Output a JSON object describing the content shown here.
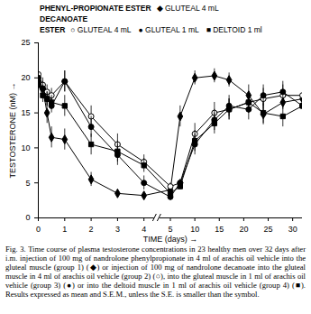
{
  "chart_data": {
    "type": "line",
    "xlabel": "TIME (days)",
    "ylabel": "TESTOSTERONE (nM)",
    "caption": "Fig. 3. Time course of plasma testosterone concentrations in 23 healthy men over 32 days after i.m. injection of 100 mg of nandrolone phenylpropionate in 4 ml of arachis oil vehicle into the gluteal muscle (group 1) (◆) or injection of 100 mg of nandrolone decanoate into the gluteal muscle in 4 ml of arachis oil vehicle (group 2) (○), into the gluteal muscle in 1 ml of arachis oil vehicle (group 3) (●) or into the deltoid muscle in 1 ml of arachis oil vehicle (group 4) (■). Results expressed as mean and S.E.M., unless the S.E. is smaller than the symbol.",
    "x": [
      0,
      0.17,
      0.33,
      0.5,
      1,
      2,
      3,
      4,
      5,
      7,
      10,
      14,
      17,
      21,
      24,
      28,
      32
    ],
    "xlim": [
      0,
      32
    ],
    "xticks": [
      0,
      1,
      2,
      3,
      4,
      5,
      10,
      15,
      20,
      25,
      30
    ],
    "ylim": [
      0,
      25
    ],
    "yticks": [
      0,
      5,
      10,
      15,
      20,
      25
    ],
    "grid": false,
    "series": [
      {
        "name": "GLUTEAL 4 mL",
        "group": "PHENYL-PROPIONATE ESTER",
        "color": "#000000",
        "marker": "diamond",
        "line_style": "solid",
        "values": [
          19.5,
          18.5,
          15,
          11.5,
          11.2,
          5.5,
          3.5,
          3.2,
          4,
          14.5,
          20,
          20.3,
          19.7,
          17.5,
          14.8,
          16.5,
          17
        ],
        "errors": [
          1,
          1,
          1.5,
          1.5,
          1.5,
          1,
          0.5,
          0.5,
          0.5,
          1.5,
          1,
          1,
          1,
          1.5,
          1.5,
          1,
          1
        ]
      },
      {
        "name": "GLUTEAL 4 mL",
        "group": "DECANOATE ESTER",
        "color": "#000000",
        "marker": "circle-open",
        "line_style": "solid",
        "values": [
          20.5,
          19,
          18,
          17.5,
          19.5,
          14.5,
          10.5,
          8,
          4.5,
          5,
          12,
          15,
          15.5,
          16.5,
          17,
          17.5,
          17.5
        ],
        "errors": [
          1,
          1,
          1,
          1,
          1.5,
          1.5,
          1.5,
          1,
          0.5,
          0.5,
          1.5,
          1.5,
          1.5,
          1.5,
          1.5,
          1.5,
          1.5
        ]
      },
      {
        "name": "GLUTEAL 1 mL",
        "group": "DECANOATE ESTER",
        "color": "#000000",
        "marker": "circle",
        "line_style": "solid",
        "values": [
          20,
          18.5,
          17,
          16,
          19.5,
          13,
          9,
          5,
          3,
          5,
          10.5,
          14,
          16,
          15.5,
          17.5,
          18,
          16
        ],
        "errors": [
          1,
          1,
          1,
          1,
          1.5,
          1.5,
          1.5,
          1,
          0.5,
          0.5,
          1.5,
          1.5,
          1.5,
          1.5,
          1.5,
          1.5,
          1.5
        ]
      },
      {
        "name": "DELTOID 1 ml",
        "group": "DECANOATE ESTER",
        "color": "#000000",
        "marker": "square",
        "line_style": "solid",
        "values": [
          19,
          17.5,
          17,
          16.5,
          16,
          10.5,
          9.5,
          7.5,
          3.5,
          4.5,
          11,
          13.5,
          15.5,
          16.5,
          15,
          14.5,
          16
        ],
        "errors": [
          1,
          1,
          1,
          1,
          1.5,
          1.5,
          1.5,
          1,
          0.5,
          0.5,
          1.5,
          1.5,
          1.5,
          1.5,
          1.5,
          1.5,
          1.5
        ]
      }
    ]
  }
}
